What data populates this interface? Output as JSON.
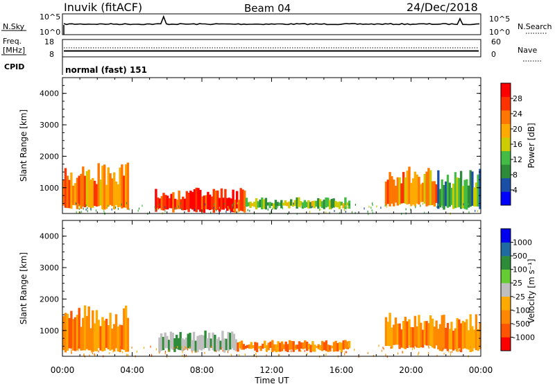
{
  "header": {
    "station": "Inuvik (fitACF)",
    "beam": "Beam 04",
    "date": "24/Dec/2018"
  },
  "top_panel": {
    "left_label": "N.Sky",
    "left_ticks": [
      "10^5",
      "10^0"
    ],
    "right_ticks": [
      "10^5",
      "10^0"
    ],
    "right_label": "N.Search"
  },
  "freq_panel": {
    "left_label_1": "Freq.",
    "left_label_2": "[MHz]",
    "left_ticks": [
      "18",
      "8"
    ],
    "right_ticks": [
      "60",
      "0"
    ],
    "right_label": "Nave",
    "cpid_label": "CPID",
    "cpid_value": "normal (fast) 151"
  },
  "colors": {
    "power_scale": [
      "#0000ff",
      "#1a4fa8",
      "#2e8b3a",
      "#44bb44",
      "#cccc00",
      "#ffaa00",
      "#ff7700",
      "#ff3300",
      "#ff0000"
    ],
    "velocity_scale": [
      "#ff0000",
      "#ff5500",
      "#ff8800",
      "#ffaa00",
      "#bfbfbf",
      "#66cc33",
      "#2e8b3a",
      "#1f6aa0",
      "#0000ee"
    ],
    "ground_scatter": "#bfbfbf"
  },
  "chart_data": [
    {
      "type": "heatmap",
      "title": "Power",
      "ylabel": "Slant Range [km]",
      "ylim": [
        180,
        4500
      ],
      "xlim": [
        "00:00",
        "24:00"
      ],
      "y_ticks": [
        "1000",
        "2000",
        "3000",
        "4000"
      ],
      "colorbar": {
        "label": "Power [dB]",
        "tick_labels": [
          "28",
          "24",
          "20",
          "16",
          "12",
          "8",
          "4"
        ],
        "range": [
          0,
          30
        ]
      },
      "echo_regions": [
        {
          "t_start": 0.0,
          "t_end": 3.8,
          "range_km": [
            300,
            1800
          ],
          "level_db": 22
        },
        {
          "t_start": 5.3,
          "t_end": 10.5,
          "range_km": [
            200,
            1000
          ],
          "level_db": 26
        },
        {
          "t_start": 10.5,
          "t_end": 16.5,
          "range_km": [
            300,
            700
          ],
          "level_db": 12
        },
        {
          "t_start": 18.5,
          "t_end": 21.5,
          "range_km": [
            400,
            1700
          ],
          "level_db": 20
        },
        {
          "t_start": 21.5,
          "t_end": 24.0,
          "range_km": [
            300,
            1600
          ],
          "level_db": 10
        }
      ]
    },
    {
      "type": "heatmap",
      "title": "Velocity",
      "ylabel": "Slant Range [km]",
      "ylim": [
        180,
        4500
      ],
      "xlim": [
        "00:00",
        "24:00"
      ],
      "xlabel": "Time UT",
      "x_ticks": [
        "00:00",
        "04:00",
        "08:00",
        "12:00",
        "16:00",
        "20:00",
        "00:00"
      ],
      "y_ticks": [
        "1000",
        "2000",
        "3000",
        "4000"
      ],
      "colorbar": {
        "label": "Velocity [m s⁻¹]",
        "tick_labels": [
          "1000",
          "500",
          "100",
          "25",
          "-25",
          "-100",
          "-500",
          "-1000"
        ]
      },
      "echo_regions": [
        {
          "t_start": 0.0,
          "t_end": 3.8,
          "range_km": [
            300,
            1800
          ],
          "velocity": -150
        },
        {
          "t_start": 5.5,
          "t_end": 10.0,
          "range_km": [
            300,
            1000
          ],
          "velocity": 0
        },
        {
          "t_start": 10.0,
          "t_end": 16.5,
          "range_km": [
            300,
            700
          ],
          "velocity": -100
        },
        {
          "t_start": 18.5,
          "t_end": 21.5,
          "range_km": [
            400,
            1600
          ],
          "velocity": -150
        },
        {
          "t_start": 21.5,
          "t_end": 24.0,
          "range_km": [
            300,
            1600
          ],
          "velocity": -200
        }
      ]
    }
  ]
}
